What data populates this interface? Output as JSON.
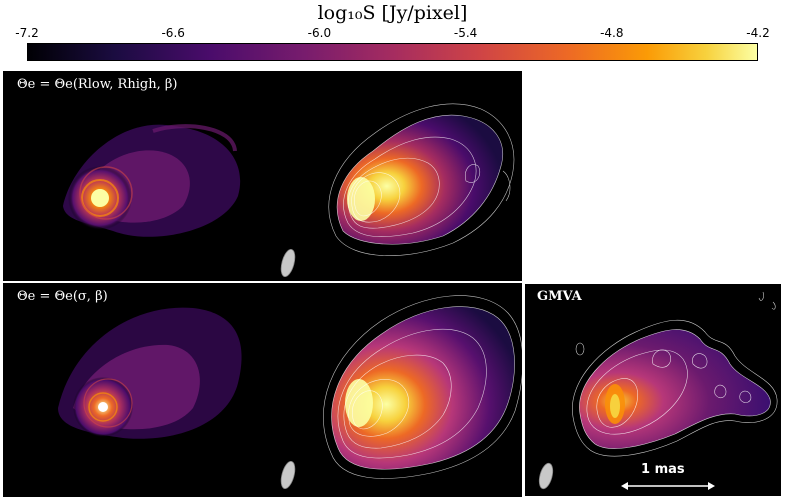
{
  "colorbar": {
    "title": "log₁₀S [Jy/pixel]",
    "ticks": [
      "-7.2",
      "-6.6",
      "-6.0",
      "-5.4",
      "-4.8",
      "-4.2"
    ],
    "range": [
      -7.2,
      -4.2
    ],
    "colormap": "inferno"
  },
  "panels": {
    "row1_label": "Θe = Θe(Rlow, Rhigh, β)",
    "row2_label": "Θe = Θe(σ, β)",
    "observation_label": "GMVA",
    "scale_bar_label": "1 mas"
  },
  "colors": {
    "background": "#000000",
    "contour": "#ffffff",
    "beam": "#c8c8c8"
  }
}
